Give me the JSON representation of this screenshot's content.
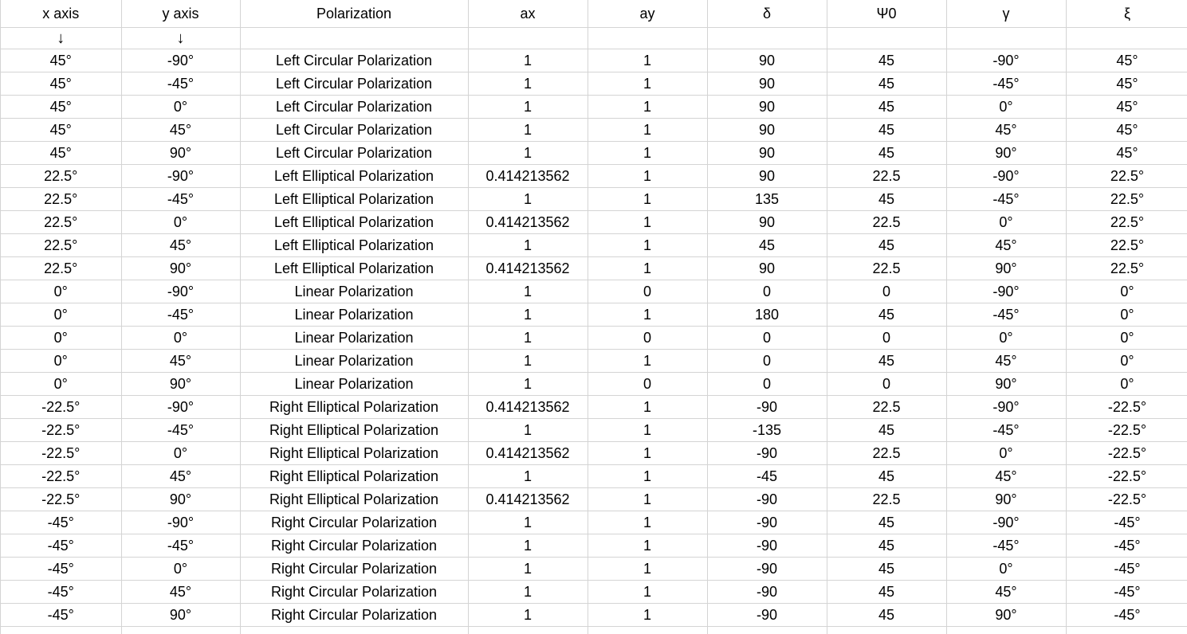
{
  "columns": [
    "x axis",
    "y axis",
    "Polarization",
    "ax",
    "ay",
    "δ",
    "Ψ0",
    "γ",
    "ξ"
  ],
  "arrows": [
    "↓",
    "↓",
    "",
    "",
    "",
    "",
    "",
    "",
    ""
  ],
  "rows": [
    [
      "45°",
      "-90°",
      "Left Circular Polarization",
      "1",
      "1",
      "90",
      "45",
      "-90°",
      "45°"
    ],
    [
      "45°",
      "-45°",
      "Left Circular Polarization",
      "1",
      "1",
      "90",
      "45",
      "-45°",
      "45°"
    ],
    [
      "45°",
      "0°",
      "Left Circular Polarization",
      "1",
      "1",
      "90",
      "45",
      "0°",
      "45°"
    ],
    [
      "45°",
      "45°",
      "Left Circular Polarization",
      "1",
      "1",
      "90",
      "45",
      "45°",
      "45°"
    ],
    [
      "45°",
      "90°",
      "Left Circular Polarization",
      "1",
      "1",
      "90",
      "45",
      "90°",
      "45°"
    ],
    [
      "22.5°",
      "-90°",
      "Left Elliptical Polarization",
      "0.414213562",
      "1",
      "90",
      "22.5",
      "-90°",
      "22.5°"
    ],
    [
      "22.5°",
      "-45°",
      "Left Elliptical Polarization",
      "1",
      "1",
      "135",
      "45",
      "-45°",
      "22.5°"
    ],
    [
      "22.5°",
      "0°",
      "Left Elliptical Polarization",
      "0.414213562",
      "1",
      "90",
      "22.5",
      "0°",
      "22.5°"
    ],
    [
      "22.5°",
      "45°",
      "Left Elliptical Polarization",
      "1",
      "1",
      "45",
      "45",
      "45°",
      "22.5°"
    ],
    [
      "22.5°",
      "90°",
      "Left Elliptical Polarization",
      "0.414213562",
      "1",
      "90",
      "22.5",
      "90°",
      "22.5°"
    ],
    [
      "0°",
      "-90°",
      "Linear Polarization",
      "1",
      "0",
      "0",
      "0",
      "-90°",
      "0°"
    ],
    [
      "0°",
      "-45°",
      "Linear Polarization",
      "1",
      "1",
      "180",
      "45",
      "-45°",
      "0°"
    ],
    [
      "0°",
      "0°",
      "Linear Polarization",
      "1",
      "0",
      "0",
      "0",
      "0°",
      "0°"
    ],
    [
      "0°",
      "45°",
      "Linear Polarization",
      "1",
      "1",
      "0",
      "45",
      "45°",
      "0°"
    ],
    [
      "0°",
      "90°",
      "Linear Polarization",
      "1",
      "0",
      "0",
      "0",
      "90°",
      "0°"
    ],
    [
      "-22.5°",
      "-90°",
      "Right Elliptical Polarization",
      "0.414213562",
      "1",
      "-90",
      "22.5",
      "-90°",
      "-22.5°"
    ],
    [
      "-22.5°",
      "-45°",
      "Right Elliptical Polarization",
      "1",
      "1",
      "-135",
      "45",
      "-45°",
      "-22.5°"
    ],
    [
      "-22.5°",
      "0°",
      "Right Elliptical Polarization",
      "0.414213562",
      "1",
      "-90",
      "22.5",
      "0°",
      "-22.5°"
    ],
    [
      "-22.5°",
      "45°",
      "Right Elliptical Polarization",
      "1",
      "1",
      "-45",
      "45",
      "45°",
      "-22.5°"
    ],
    [
      "-22.5°",
      "90°",
      "Right Elliptical Polarization",
      "0.414213562",
      "1",
      "-90",
      "22.5",
      "90°",
      "-22.5°"
    ],
    [
      "-45°",
      "-90°",
      "Right Circular Polarization",
      "1",
      "1",
      "-90",
      "45",
      "-90°",
      "-45°"
    ],
    [
      "-45°",
      "-45°",
      "Right Circular Polarization",
      "1",
      "1",
      "-90",
      "45",
      "-45°",
      "-45°"
    ],
    [
      "-45°",
      "0°",
      "Right Circular Polarization",
      "1",
      "1",
      "-90",
      "45",
      "0°",
      "-45°"
    ],
    [
      "-45°",
      "45°",
      "Right Circular Polarization",
      "1",
      "1",
      "-90",
      "45",
      "45°",
      "-45°"
    ],
    [
      "-45°",
      "90°",
      "Right Circular Polarization",
      "1",
      "1",
      "-90",
      "45",
      "90°",
      "-45°"
    ],
    [
      "",
      "",
      "",
      "",
      "",
      "",
      "",
      "",
      ""
    ]
  ]
}
